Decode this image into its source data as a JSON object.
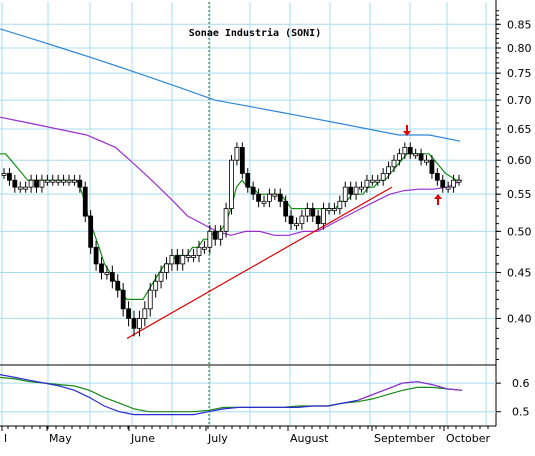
{
  "chart_data": [
    {
      "type": "candlestick",
      "title": "Sonae Industria (SONI)",
      "ylim": [
        0.355,
        0.9
      ],
      "log_scale": true,
      "grid": true,
      "x_tick_labels": [
        "l",
        "May",
        "June",
        "July",
        "August",
        "September",
        "October"
      ],
      "y_ticks": [
        0.4,
        0.45,
        0.5,
        0.55,
        0.6,
        0.65,
        0.7,
        0.75,
        0.8,
        0.85
      ],
      "y_tick_labels": [
        "0.40",
        "0.45",
        "0.50",
        "0.55",
        "0.60",
        "0.65",
        "0.70",
        "0.75",
        "0.80",
        "0.85"
      ],
      "colors": {
        "long_ma": "#2f86d6",
        "mid_ma": "#9a2fd0",
        "short_ma": "#178a17",
        "trendline": "#dd0000",
        "arrow": "#e00000",
        "grid": "#a9dcef"
      },
      "price": [
        0.58,
        0.57,
        0.56,
        0.56,
        0.56,
        0.57,
        0.56,
        0.57,
        0.57,
        0.57,
        0.57,
        0.57,
        0.57,
        0.57,
        0.56,
        0.52,
        0.48,
        0.46,
        0.45,
        0.45,
        0.44,
        0.43,
        0.41,
        0.4,
        0.39,
        0.4,
        0.41,
        0.43,
        0.44,
        0.45,
        0.46,
        0.47,
        0.46,
        0.47,
        0.47,
        0.47,
        0.48,
        0.48,
        0.5,
        0.49,
        0.5,
        0.53,
        0.6,
        0.62,
        0.58,
        0.56,
        0.55,
        0.54,
        0.54,
        0.55,
        0.55,
        0.54,
        0.52,
        0.51,
        0.51,
        0.52,
        0.53,
        0.52,
        0.51,
        0.53,
        0.53,
        0.53,
        0.54,
        0.56,
        0.55,
        0.56,
        0.56,
        0.57,
        0.57,
        0.57,
        0.58,
        0.59,
        0.6,
        0.61,
        0.62,
        0.61,
        0.61,
        0.6,
        0.6,
        0.58,
        0.57,
        0.56,
        0.56,
        0.57,
        0.57
      ],
      "short_ma": [
        0.61,
        0.61,
        0.6,
        0.59,
        0.58,
        0.57,
        0.57,
        0.57,
        0.57,
        0.57,
        0.57,
        0.57,
        0.57,
        0.57,
        0.57,
        0.55,
        0.52,
        0.5,
        0.48,
        0.46,
        0.45,
        0.44,
        0.43,
        0.42,
        0.42,
        0.42,
        0.42,
        0.43,
        0.44,
        0.45,
        0.46,
        0.46,
        0.47,
        0.47,
        0.47,
        0.48,
        0.48,
        0.49,
        0.49,
        0.5,
        0.5,
        0.51,
        0.53,
        0.56,
        0.57,
        0.56,
        0.56,
        0.55,
        0.55,
        0.55,
        0.55,
        0.55,
        0.54,
        0.53,
        0.53,
        0.53,
        0.53,
        0.53,
        0.53,
        0.53,
        0.53,
        0.53,
        0.54,
        0.54,
        0.55,
        0.55,
        0.55,
        0.56,
        0.56,
        0.57,
        0.57,
        0.58,
        0.59,
        0.6,
        0.61,
        0.61,
        0.61,
        0.61,
        0.61,
        0.6,
        0.59,
        0.58,
        0.575,
        0.57,
        0.57
      ],
      "mid_ma": [
        0.67,
        0.665,
        0.66,
        0.655,
        0.65,
        0.645,
        0.64,
        0.63,
        0.62,
        0.6,
        0.58,
        0.56,
        0.54,
        0.52,
        0.51,
        0.5,
        0.495,
        0.5,
        0.5,
        0.495,
        0.495,
        0.5,
        0.5,
        0.51,
        0.52,
        0.53,
        0.54,
        0.55,
        0.555,
        0.557,
        0.557,
        0.56,
        0.57
      ],
      "long_ma": [
        0.84,
        0.82,
        0.8,
        0.78,
        0.76,
        0.74,
        0.72,
        0.7,
        0.69,
        0.68,
        0.67,
        0.66,
        0.65,
        0.64,
        0.64,
        0.63
      ],
      "trendline": [
        [
          0.38,
          0.56
        ]
      ],
      "annotations": [
        "down-arrow",
        "up-arrow"
      ],
      "lower_panel": {
        "y_ticks": [
          0.5,
          0.6
        ],
        "y_tick_labels": [
          "0.5",
          "0.6"
        ]
      }
    }
  ]
}
